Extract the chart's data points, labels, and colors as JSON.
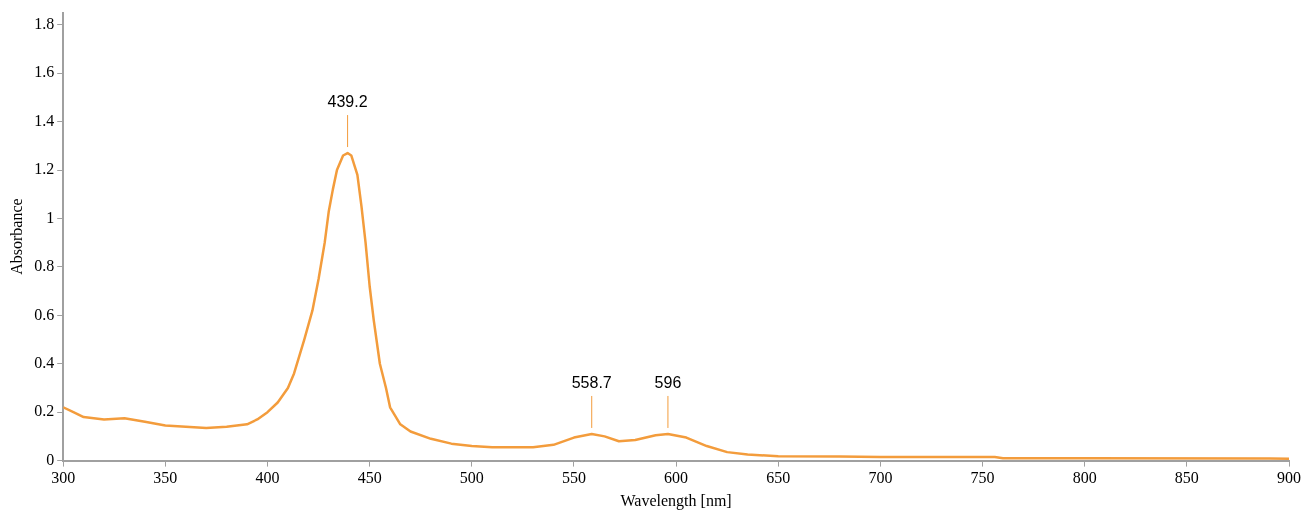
{
  "chart_data": {
    "type": "line",
    "xlabel": "Wavelength [nm]",
    "ylabel": "Absorbance",
    "xlim": [
      300,
      900
    ],
    "xticks": [
      300,
      350,
      400,
      450,
      500,
      550,
      600,
      650,
      700,
      750,
      800,
      850,
      900
    ],
    "ylim": [
      0,
      1.85
    ],
    "yticks": [
      0,
      0.2,
      0.4,
      0.6,
      0.8,
      1,
      1.2,
      1.4,
      1.6,
      1.8
    ],
    "grid": false,
    "legend": false,
    "marker": "none",
    "line_style": "solid",
    "series": [
      {
        "color": "#f39c3c",
        "x": [
          300,
          305,
          310,
          320,
          330,
          340,
          350,
          360,
          370,
          380,
          390,
          395,
          400,
          405,
          410,
          413,
          418,
          422,
          425,
          428,
          430,
          432,
          434,
          437,
          439.2,
          441,
          444,
          446,
          448,
          450,
          452,
          455,
          458,
          460,
          465,
          470,
          480,
          490,
          500,
          510,
          530,
          540,
          550,
          558.7,
          565,
          572,
          580,
          590,
          596,
          605,
          615,
          625,
          635,
          650,
          680,
          700,
          756,
          760,
          800,
          900
        ],
        "values": [
          0.22,
          0.2,
          0.18,
          0.17,
          0.175,
          0.16,
          0.145,
          0.14,
          0.135,
          0.14,
          0.15,
          0.17,
          0.2,
          0.24,
          0.3,
          0.36,
          0.5,
          0.62,
          0.75,
          0.9,
          1.03,
          1.12,
          1.2,
          1.26,
          1.27,
          1.26,
          1.18,
          1.05,
          0.9,
          0.72,
          0.58,
          0.4,
          0.3,
          0.22,
          0.15,
          0.12,
          0.09,
          0.07,
          0.06,
          0.055,
          0.055,
          0.065,
          0.095,
          0.11,
          0.1,
          0.08,
          0.085,
          0.105,
          0.11,
          0.095,
          0.06,
          0.035,
          0.025,
          0.018,
          0.017,
          0.015,
          0.015,
          0.01,
          0.01,
          0.008
        ]
      }
    ],
    "annotations": [
      {
        "text": "439.2",
        "x": 439.2,
        "y": 1.27
      },
      {
        "text": "558.7",
        "x": 558.7,
        "y": 0.11
      },
      {
        "text": "596",
        "x": 596,
        "y": 0.11
      }
    ]
  }
}
